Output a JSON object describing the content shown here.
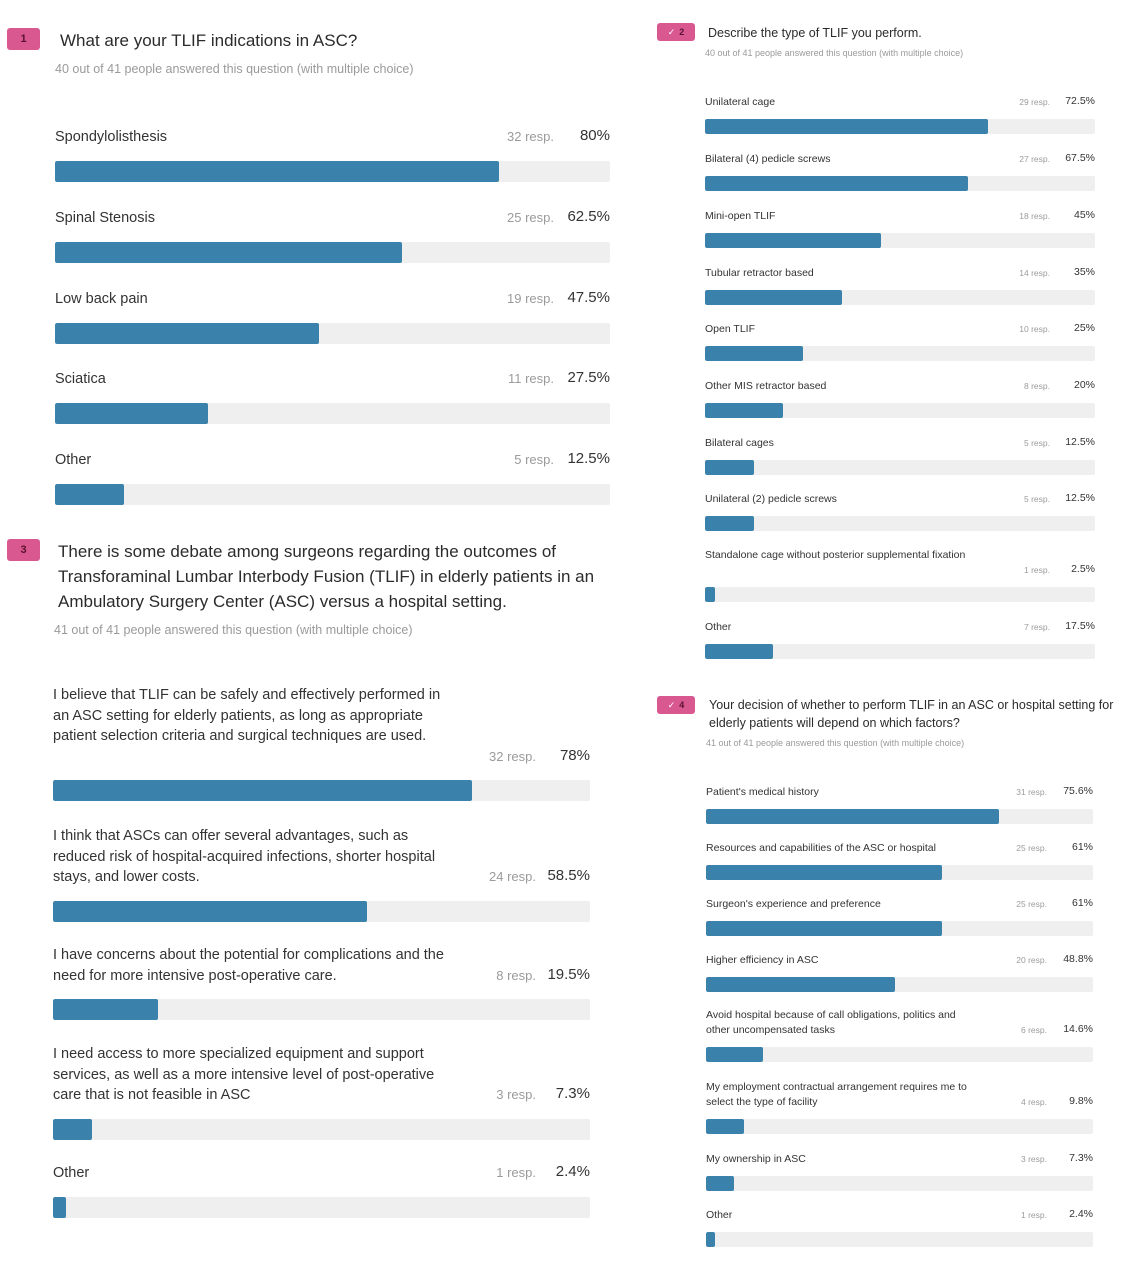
{
  "chart_data": [
    {
      "type": "bar",
      "number": "1",
      "title": "What are your TLIF indications in ASC?",
      "subtitle": "40 out of 41 people answered this question (with multiple choice)",
      "categories": [
        "Spondylolisthesis",
        "Spinal Stenosis",
        "Low back pain",
        "Sciatica",
        "Other"
      ],
      "responses": [
        "32 resp.",
        "25 resp.",
        "19 resp.",
        "11 resp.",
        "5 resp."
      ],
      "percent_labels": [
        "80%",
        "62.5%",
        "47.5%",
        "27.5%",
        "12.5%"
      ],
      "values": [
        80,
        62.5,
        47.5,
        27.5,
        12.5
      ],
      "ylim": [
        0,
        100
      ]
    },
    {
      "type": "bar",
      "number": "2",
      "title": "Describe the type of TLIF you perform.",
      "subtitle": "40 out of 41 people answered this question (with multiple choice)",
      "categories": [
        "Unilateral cage",
        "Bilateral (4) pedicle screws",
        "Mini-open TLIF",
        "Tubular retractor based",
        "Open TLIF",
        "Other MIS retractor based",
        "Bilateral cages",
        "Unilateral (2) pedicle screws",
        "Standalone cage without posterior supplemental fixation",
        "Other"
      ],
      "responses": [
        "29 resp.",
        "27 resp.",
        "18 resp.",
        "14 resp.",
        "10 resp.",
        "8 resp.",
        "5 resp.",
        "5 resp.",
        "1 resp.",
        "7 resp."
      ],
      "percent_labels": [
        "72.5%",
        "67.5%",
        "45%",
        "35%",
        "25%",
        "20%",
        "12.5%",
        "12.5%",
        "2.5%",
        "17.5%"
      ],
      "values": [
        72.5,
        67.5,
        45,
        35,
        25,
        20,
        12.5,
        12.5,
        2.5,
        17.5
      ],
      "ylim": [
        0,
        100
      ]
    },
    {
      "type": "bar",
      "number": "3",
      "title": "There is some debate among surgeons regarding the outcomes of Transforaminal Lumbar Interbody Fusion (TLIF) in elderly patients in an Ambulatory Surgery Center (ASC) versus a hospital setting.",
      "subtitle": "41 out of 41 people answered this question (with multiple choice)",
      "categories": [
        "I believe that TLIF can be safely and effectively performed in an ASC setting for elderly patients, as long as appropriate patient selection criteria and surgical techniques are used.",
        "I think that ASCs can offer several advantages, such as reduced risk of hospital-acquired infections, shorter hospital stays, and lower costs.",
        "I have concerns about the potential for complications and the need for more intensive post-operative care.",
        "I need access to more specialized equipment and support services, as well as a more intensive level of post-operative care that is not feasible in ASC",
        "Other"
      ],
      "responses": [
        "32 resp.",
        "24 resp.",
        "8 resp.",
        "3 resp.",
        "1 resp."
      ],
      "percent_labels": [
        "78%",
        "58.5%",
        "19.5%",
        "7.3%",
        "2.4%"
      ],
      "values": [
        78,
        58.5,
        19.5,
        7.3,
        2.4
      ],
      "ylim": [
        0,
        100
      ]
    },
    {
      "type": "bar",
      "number": "4",
      "title": "Your decision of whether to perform TLIF in an ASC or hospital setting for elderly patients will depend on which factors?",
      "subtitle": "41 out of 41 people answered this question (with multiple choice)",
      "categories": [
        "Patient's medical history",
        "Resources and capabilities of the ASC or hospital",
        "Surgeon's experience and preference",
        "Higher efficiency in ASC",
        "Avoid hospital because of call obligations, politics and other uncompensated tasks",
        "My employment contractual arrangement requires me to select the type of facility",
        "My ownership in ASC",
        "Other"
      ],
      "responses": [
        "31 resp.",
        "25 resp.",
        "25 resp.",
        "20 resp.",
        "6 resp.",
        "4 resp.",
        "3 resp.",
        "1 resp."
      ],
      "percent_labels": [
        "75.6%",
        "61%",
        "61%",
        "48.8%",
        "14.6%",
        "9.8%",
        "7.3%",
        "2.4%"
      ],
      "values": [
        75.6,
        61,
        61,
        48.8,
        14.6,
        9.8,
        7.3,
        2.4
      ],
      "ylim": [
        0,
        100
      ]
    }
  ],
  "colors": {
    "bar_fill": "#3a82ab",
    "bar_track": "#efefef",
    "badge": "#d9588f"
  },
  "icons": {
    "checked_badge": "check-icon"
  }
}
